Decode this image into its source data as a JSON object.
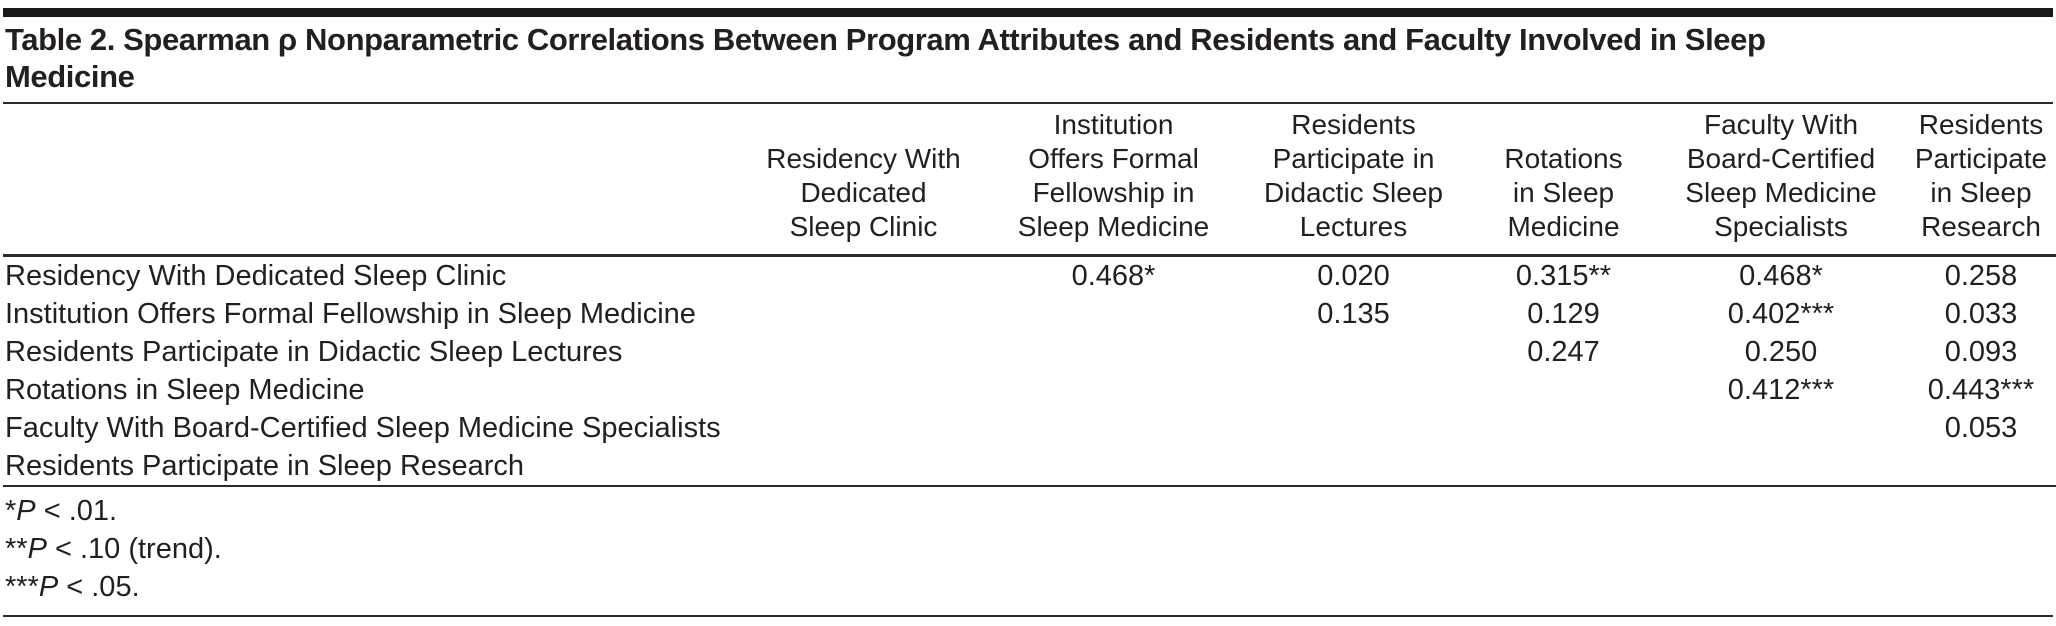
{
  "title_lines": [
    "Table 2. Spearman ρ Nonparametric Correlations Between Program Attributes and Residents and Faculty Involved in Sleep",
    "Medicine"
  ],
  "table": {
    "row_header_column": "",
    "columns": [
      {
        "lines": [
          "Residency With",
          "Dedicated",
          "Sleep Clinic"
        ]
      },
      {
        "lines": [
          "Institution",
          "Offers Formal",
          "Fellowship in",
          "Sleep Medicine"
        ]
      },
      {
        "lines": [
          "Residents",
          "Participate in",
          "Didactic Sleep",
          "Lectures"
        ]
      },
      {
        "lines": [
          "Rotations",
          "in Sleep",
          "Medicine"
        ]
      },
      {
        "lines": [
          "Faculty With",
          "Board-Certified",
          "Sleep Medicine",
          "Specialists"
        ]
      },
      {
        "lines": [
          "Residents",
          "Participate",
          "in Sleep",
          "Research"
        ]
      }
    ],
    "rows": [
      {
        "label": "Residency With Dedicated Sleep Clinic",
        "values": [
          "",
          "0.468*",
          "0.020",
          "0.315**",
          "0.468*",
          "0.258"
        ]
      },
      {
        "label": "Institution Offers Formal Fellowship in Sleep Medicine",
        "values": [
          "",
          "",
          "0.135",
          "0.129",
          "0.402***",
          "0.033"
        ]
      },
      {
        "label": "Residents Participate in Didactic Sleep Lectures",
        "values": [
          "",
          "",
          "",
          "0.247",
          "0.250",
          "0.093"
        ]
      },
      {
        "label": "Rotations in Sleep Medicine",
        "values": [
          "",
          "",
          "",
          "",
          "0.412***",
          "0.443***"
        ]
      },
      {
        "label": "Faculty With Board-Certified Sleep Medicine Specialists",
        "values": [
          "",
          "",
          "",
          "",
          "",
          "0.053"
        ]
      },
      {
        "label": "Residents Participate in Sleep Research",
        "values": [
          "",
          "",
          "",
          "",
          "",
          ""
        ]
      }
    ]
  },
  "footnotes": [
    {
      "stars": "*",
      "symbol": "P",
      "rest": " < .01."
    },
    {
      "stars": "**",
      "symbol": "P",
      "rest": " < .10 (trend)."
    },
    {
      "stars": "***",
      "symbol": "P",
      "rest": " < .05."
    }
  ],
  "colors": {
    "text": "#231f20",
    "rule": "#2b2a29",
    "top_bar": "#1b1819",
    "background": "#ffffff"
  }
}
